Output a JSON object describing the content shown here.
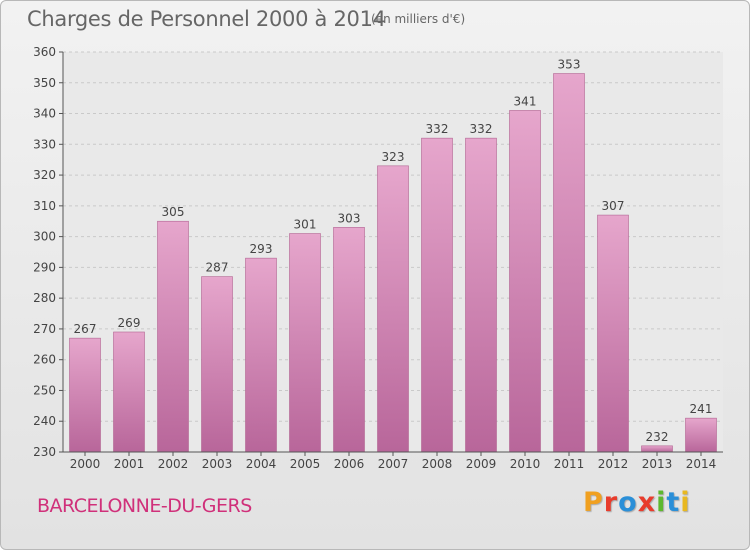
{
  "header": {
    "title": "Charges de Personnel 2000 à 2014",
    "subtitle": "(en milliers d'€)"
  },
  "footer": {
    "location": "BARCELONNE-DU-GERS",
    "logo_letters": [
      "P",
      "r",
      "o",
      "x",
      "i",
      "t",
      "i"
    ],
    "logo_colors": [
      "#f0a020",
      "#e83c2c",
      "#2a8fd8",
      "#e83c2c",
      "#5db82e",
      "#2a8fd8",
      "#e8b820"
    ]
  },
  "colors": {
    "bar_light": "#e6a6cc",
    "bar_dark": "#b8669a",
    "grid": "#c9c9c9",
    "axis": "#555555",
    "text": "#444444"
  },
  "chart_data": {
    "type": "bar",
    "title": "Charges de Personnel 2000 à 2014",
    "subtitle": "(en milliers d'€)",
    "categories": [
      "2000",
      "2001",
      "2002",
      "2003",
      "2004",
      "2005",
      "2006",
      "2007",
      "2008",
      "2009",
      "2010",
      "2011",
      "2012",
      "2013",
      "2014"
    ],
    "values": [
      267,
      269,
      305,
      287,
      293,
      301,
      303,
      323,
      332,
      332,
      341,
      353,
      307,
      232,
      241
    ],
    "ylim": [
      230,
      360
    ],
    "yticks": [
      230,
      240,
      250,
      260,
      270,
      280,
      290,
      300,
      310,
      320,
      330,
      340,
      350,
      360
    ],
    "grid": true,
    "xlabel": "",
    "ylabel": ""
  }
}
